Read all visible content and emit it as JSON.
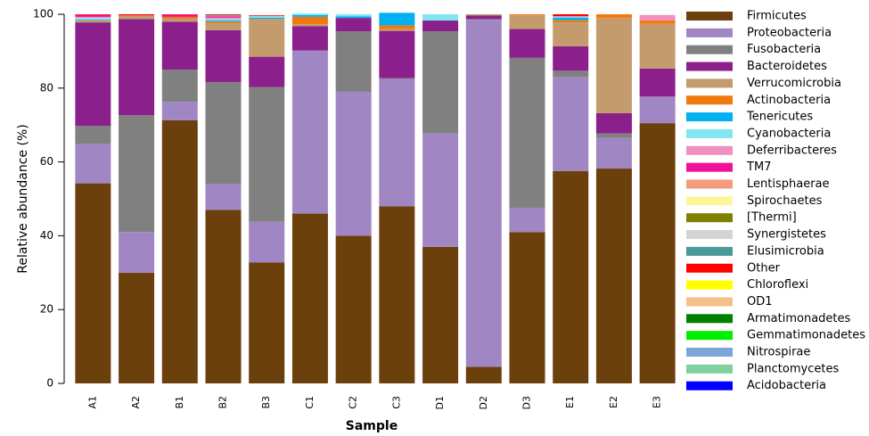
{
  "chart_data": {
    "type": "stacked-bar",
    "x_label": "Sample",
    "y_label": "Relative abundance (%)",
    "categories": [
      "A1",
      "A2",
      "B1",
      "B2",
      "B3",
      "C1",
      "C2",
      "C3",
      "D1",
      "D2",
      "D3",
      "E1",
      "E2",
      "E3"
    ],
    "ylim": [
      0,
      100
    ],
    "yticks": [
      0,
      20,
      40,
      60,
      80,
      100
    ],
    "series": [
      {
        "name": "Firmicutes",
        "color": "#6b400d",
        "values": [
          54.2,
          30,
          71.3,
          47,
          32.8,
          46,
          40,
          48,
          37,
          4.5,
          41,
          57.5,
          58.2,
          70.5
        ]
      },
      {
        "name": "Proteobacteria",
        "color": "#a186c4",
        "values": [
          10.6,
          11,
          5,
          7,
          11,
          44.2,
          39,
          34.5,
          30.7,
          94,
          6.5,
          25.5,
          8.3,
          7.2
        ]
      },
      {
        "name": "Fusobacteria",
        "color": "#808080",
        "values": [
          5,
          31.7,
          8.7,
          27.6,
          36.5,
          0,
          16.4,
          0.2,
          27.7,
          0.2,
          40.7,
          1.7,
          1.2,
          0
        ]
      },
      {
        "name": "Bacteroidetes",
        "color": "#8b1f8b",
        "values": [
          28,
          26,
          13,
          14.1,
          8.2,
          6.6,
          3.6,
          12.8,
          2.9,
          1,
          7.8,
          6.6,
          5.5,
          7.6
        ]
      },
      {
        "name": "Verrucomicrobia",
        "color": "#c49b6c",
        "values": [
          0.3,
          1,
          0.8,
          1.8,
          10.3,
          0.5,
          0,
          0.5,
          0,
          0.3,
          3.7,
          6.5,
          25.8,
          12.1
        ]
      },
      {
        "name": "Actinobacteria",
        "color": "#f07a10",
        "values": [
          0.2,
          0,
          0.5,
          0.5,
          0,
          2,
          0,
          1,
          0,
          0,
          0.3,
          0.6,
          1,
          0.9
        ]
      },
      {
        "name": "Tenericutes",
        "color": "#00b0f0",
        "values": [
          0.2,
          0,
          0,
          0.3,
          0.3,
          0.5,
          0.4,
          3.4,
          0,
          0,
          0,
          0.7,
          0,
          0
        ]
      },
      {
        "name": "Cyanobacteria",
        "color": "#80e6f0",
        "values": [
          0.5,
          0,
          0,
          0.4,
          0.4,
          0.4,
          0.6,
          0,
          1.7,
          0,
          0,
          0.2,
          0,
          0
        ]
      },
      {
        "name": "Deferribacteres",
        "color": "#f090c0",
        "values": [
          0.3,
          0,
          0,
          0.4,
          0,
          0,
          0,
          0,
          0,
          0,
          0,
          0.2,
          0,
          1.5
        ]
      },
      {
        "name": "TM7",
        "color": "#f0109a",
        "values": [
          0.5,
          0,
          0.5,
          0.3,
          0,
          0,
          0,
          0,
          0,
          0,
          0,
          0,
          0,
          0
        ]
      },
      {
        "name": "Lentisphaerae",
        "color": "#f59a7a",
        "values": [
          0,
          0,
          0,
          0.2,
          0,
          0,
          0,
          0,
          0,
          0,
          0,
          0,
          0,
          0
        ]
      },
      {
        "name": "Spirochaetes",
        "color": "#fdf59a",
        "values": [
          0,
          0,
          0,
          0,
          0,
          0,
          0,
          0,
          0,
          0,
          0,
          0,
          0,
          0
        ]
      },
      {
        "name": "[Thermi]",
        "color": "#808000",
        "values": [
          0,
          0,
          0,
          0,
          0,
          0,
          0,
          0,
          0,
          0,
          0,
          0,
          0,
          0
        ]
      },
      {
        "name": "Synergistetes",
        "color": "#d3d3d3",
        "values": [
          0,
          0,
          0,
          0,
          0,
          0,
          0,
          0,
          0,
          0,
          0,
          0,
          0,
          0
        ]
      },
      {
        "name": "Elusimicrobia",
        "color": "#4a9a9a",
        "values": [
          0,
          0,
          0,
          0.2,
          0,
          0,
          0,
          0,
          0,
          0,
          0,
          0,
          0,
          0
        ]
      },
      {
        "name": "Other",
        "color": "#ff0000",
        "values": [
          0.2,
          0.3,
          0.2,
          0.2,
          0.2,
          0,
          0,
          0,
          0,
          0,
          0,
          0.5,
          0,
          0
        ]
      },
      {
        "name": "Chloroflexi",
        "color": "#ffff00",
        "values": [
          0,
          0,
          0,
          0,
          0,
          0,
          0,
          0,
          0,
          0,
          0,
          0,
          0,
          0
        ]
      },
      {
        "name": "OD1",
        "color": "#f5c088",
        "values": [
          0,
          0,
          0,
          0,
          0,
          0,
          0,
          0,
          0,
          0,
          0,
          0,
          0,
          0
        ]
      },
      {
        "name": "Armatimonadetes",
        "color": "#008000",
        "values": [
          0,
          0,
          0,
          0,
          0,
          0,
          0,
          0,
          0,
          0,
          0,
          0,
          0,
          0
        ]
      },
      {
        "name": "Gemmatimonadetes",
        "color": "#00ee00",
        "values": [
          0,
          0,
          0,
          0,
          0,
          0,
          0,
          0,
          0,
          0,
          0,
          0,
          0,
          0
        ]
      },
      {
        "name": "Nitrospirae",
        "color": "#7aa6d6",
        "values": [
          0,
          0,
          0,
          0,
          0,
          0,
          0,
          0,
          0,
          0,
          0,
          0,
          0,
          0
        ]
      },
      {
        "name": "Planctomycetes",
        "color": "#7fcf9f",
        "values": [
          0,
          0,
          0,
          0,
          0,
          0,
          0,
          0,
          0,
          0,
          0,
          0,
          0,
          0
        ]
      },
      {
        "name": "Acidobacteria",
        "color": "#0000ff",
        "values": [
          0,
          0,
          0,
          0,
          0,
          0,
          0,
          0,
          0,
          0,
          0,
          0,
          0,
          0
        ]
      }
    ]
  }
}
